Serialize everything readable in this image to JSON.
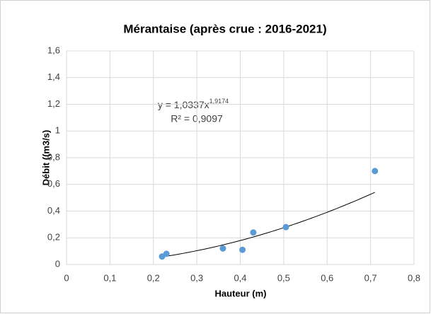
{
  "chart_data": {
    "type": "scatter",
    "title": "Mérantaise (après crue : 2016-2021)",
    "xlabel": "Hauteur (m)",
    "ylabel": "Débit ((m3/s)",
    "series": [
      {
        "name": "Mérantaise",
        "color": "#5b9bd5",
        "x": [
          0.22,
          0.23,
          0.36,
          0.405,
          0.43,
          0.505,
          0.71
        ],
        "values": [
          0.06,
          0.08,
          0.12,
          0.11,
          0.24,
          0.28,
          0.7
        ]
      }
    ],
    "trendline": {
      "type": "power",
      "equation": "y = 1,0337x",
      "exponent": "1,9174",
      "r2": "R² = 0,9097"
    },
    "xlim": [
      0,
      0.8
    ],
    "xticks": [
      0,
      {
        "value": 0.1,
        "label": "0,1"
      },
      {
        "value": 0.2,
        "label": "0,2"
      },
      {
        "value": 0.3,
        "label": "0,3"
      },
      {
        "value": 0.4,
        "label": "0,4"
      },
      {
        "value": 0.5,
        "label": "0,5"
      },
      {
        "value": 0.6,
        "label": "0,6"
      },
      {
        "value": 0.7,
        "label": "0,7"
      },
      {
        "value": 0.8,
        "label": "0,8"
      }
    ],
    "ylim": [
      0,
      1.6
    ],
    "yticks": [
      0,
      {
        "value": 0.2,
        "label": "0,2"
      },
      {
        "value": 0.4,
        "label": "0,4"
      },
      {
        "value": 0.6,
        "label": "0,6"
      },
      {
        "value": 0.8,
        "label": "0,8"
      },
      1,
      {
        "value": 1.2,
        "label": "1,2"
      },
      {
        "value": 1.4,
        "label": "1,4"
      },
      {
        "value": 1.6,
        "label": "1,6"
      }
    ],
    "grid": true
  }
}
